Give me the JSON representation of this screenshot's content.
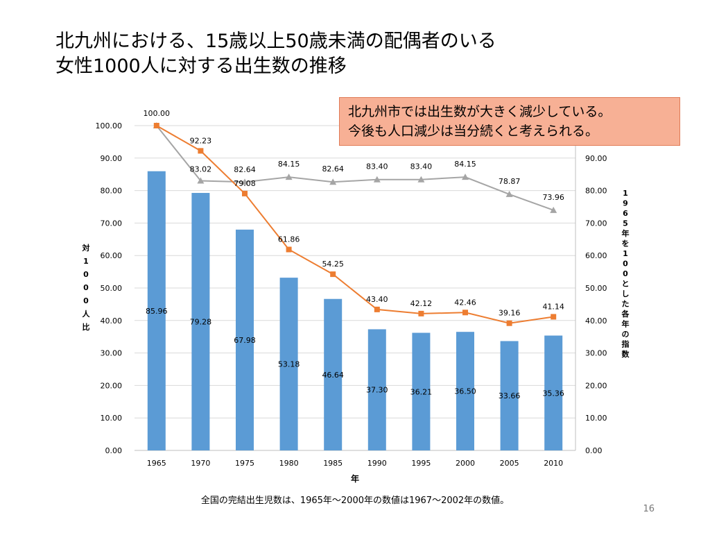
{
  "slide": {
    "title_line1": "北九州における、15歳以上50歳未満の配偶者のいる",
    "title_line2": "女性1000人に対する出生数の推移",
    "callout_line1": "北九州市では出生数が大きく減少している。",
    "callout_line2": "今後も人口減少は当分続くと考えられる。",
    "footnote": "全国の完結出生児数は、1965年〜2000年の数値は1967〜2002年の数値。",
    "page_number": "16"
  },
  "chart_data": {
    "type": "bar",
    "categories": [
      "1965",
      "1970",
      "1975",
      "1980",
      "1985",
      "1990",
      "1995",
      "2000",
      "2005",
      "2010"
    ],
    "xlabel": "年",
    "ylabel_left": "対1000人比",
    "ylabel_right": "1965年を100とした各年の指数",
    "ylim_left": [
      0,
      100
    ],
    "ylim_right": [
      0,
      100
    ],
    "yticks": [
      "0.00",
      "10.00",
      "20.00",
      "30.00",
      "40.00",
      "50.00",
      "60.00",
      "70.00",
      "80.00",
      "90.00",
      "100.00"
    ],
    "right_yticks": [
      "0.00",
      "10.00",
      "20.00",
      "30.00",
      "40.00",
      "50.00",
      "60.00",
      "70.00",
      "80.00",
      "90.00"
    ],
    "grid": true,
    "series": [
      {
        "type": "bar",
        "axis": "left",
        "color": "#5b9bd5",
        "values": [
          85.96,
          79.28,
          67.98,
          53.18,
          46.64,
          37.3,
          36.21,
          36.5,
          33.66,
          35.36
        ],
        "labels": [
          "85.96",
          "79.28",
          "67.98",
          "53.18",
          "46.64",
          "37.30",
          "36.21",
          "36.50",
          "33.66",
          "35.36"
        ]
      },
      {
        "type": "line",
        "axis": "right",
        "color": "#ed7d31",
        "marker": "square",
        "values": [
          100.0,
          92.23,
          79.08,
          61.86,
          54.25,
          43.4,
          42.12,
          42.46,
          39.16,
          41.14
        ],
        "labels": [
          "100.00",
          "92.23",
          "79.08",
          "61.86",
          "54.25",
          "43.40",
          "42.12",
          "42.46",
          "39.16",
          "41.14"
        ]
      },
      {
        "type": "line",
        "axis": "right",
        "color": "#a5a5a5",
        "marker": "triangle",
        "values": [
          100.0,
          83.02,
          82.64,
          84.15,
          82.64,
          83.4,
          83.4,
          84.15,
          78.87,
          73.96
        ],
        "labels": [
          "100.00",
          "83.02",
          "82.64",
          "84.15",
          "82.64",
          "83.40",
          "83.40",
          "84.15",
          "78.87",
          "73.96"
        ]
      }
    ]
  }
}
